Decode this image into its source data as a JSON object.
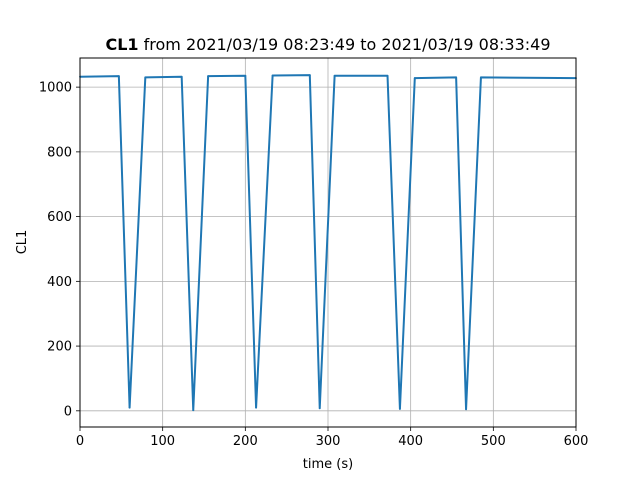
{
  "chart_data": {
    "type": "line",
    "title_bold": "CL1",
    "title_rest": " from 2021/03/19 08:23:49 to 2021/03/19 08:33:49",
    "xlabel": "time (s)",
    "ylabel": "CL1",
    "xlim": [
      0,
      600
    ],
    "ylim": [
      -50,
      1090
    ],
    "xticks": [
      0,
      100,
      200,
      300,
      400,
      500,
      600
    ],
    "yticks": [
      0,
      200,
      400,
      600,
      800,
      1000
    ],
    "grid": true,
    "line_color": "#1f77b4",
    "series": [
      {
        "x": [
          0,
          47,
          60,
          79,
          123,
          137,
          155,
          200,
          213,
          233,
          278,
          290,
          308,
          372,
          387,
          405,
          455,
          467,
          485,
          600
        ],
        "y": [
          1032,
          1034,
          10,
          1030,
          1032,
          2,
          1034,
          1035,
          10,
          1036,
          1037,
          8,
          1035,
          1035,
          6,
          1028,
          1030,
          5,
          1030,
          1028
        ]
      }
    ]
  }
}
